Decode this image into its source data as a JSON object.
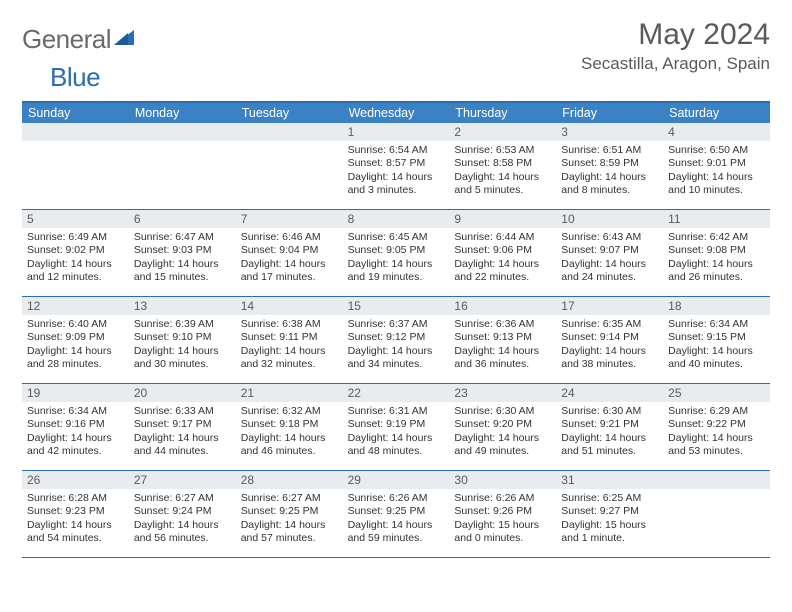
{
  "logo": {
    "gray": "General",
    "blue": "Blue"
  },
  "title": "May 2024",
  "location": "Secastilla, Aragon, Spain",
  "colors": {
    "header_bg": "#3b82c4",
    "border": "#2a6db0",
    "daynum_bg": "#e9ecef",
    "text": "#333333",
    "muted": "#5a5a5a"
  },
  "dayNames": [
    "Sunday",
    "Monday",
    "Tuesday",
    "Wednesday",
    "Thursday",
    "Friday",
    "Saturday"
  ],
  "weeks": [
    [
      {
        "empty": true
      },
      {
        "empty": true
      },
      {
        "empty": true
      },
      {
        "day": "1",
        "sunrise": "6:54 AM",
        "sunset": "8:57 PM",
        "daylight": "14 hours and 3 minutes."
      },
      {
        "day": "2",
        "sunrise": "6:53 AM",
        "sunset": "8:58 PM",
        "daylight": "14 hours and 5 minutes."
      },
      {
        "day": "3",
        "sunrise": "6:51 AM",
        "sunset": "8:59 PM",
        "daylight": "14 hours and 8 minutes."
      },
      {
        "day": "4",
        "sunrise": "6:50 AM",
        "sunset": "9:01 PM",
        "daylight": "14 hours and 10 minutes."
      }
    ],
    [
      {
        "day": "5",
        "sunrise": "6:49 AM",
        "sunset": "9:02 PM",
        "daylight": "14 hours and 12 minutes."
      },
      {
        "day": "6",
        "sunrise": "6:47 AM",
        "sunset": "9:03 PM",
        "daylight": "14 hours and 15 minutes."
      },
      {
        "day": "7",
        "sunrise": "6:46 AM",
        "sunset": "9:04 PM",
        "daylight": "14 hours and 17 minutes."
      },
      {
        "day": "8",
        "sunrise": "6:45 AM",
        "sunset": "9:05 PM",
        "daylight": "14 hours and 19 minutes."
      },
      {
        "day": "9",
        "sunrise": "6:44 AM",
        "sunset": "9:06 PM",
        "daylight": "14 hours and 22 minutes."
      },
      {
        "day": "10",
        "sunrise": "6:43 AM",
        "sunset": "9:07 PM",
        "daylight": "14 hours and 24 minutes."
      },
      {
        "day": "11",
        "sunrise": "6:42 AM",
        "sunset": "9:08 PM",
        "daylight": "14 hours and 26 minutes."
      }
    ],
    [
      {
        "day": "12",
        "sunrise": "6:40 AM",
        "sunset": "9:09 PM",
        "daylight": "14 hours and 28 minutes."
      },
      {
        "day": "13",
        "sunrise": "6:39 AM",
        "sunset": "9:10 PM",
        "daylight": "14 hours and 30 minutes."
      },
      {
        "day": "14",
        "sunrise": "6:38 AM",
        "sunset": "9:11 PM",
        "daylight": "14 hours and 32 minutes."
      },
      {
        "day": "15",
        "sunrise": "6:37 AM",
        "sunset": "9:12 PM",
        "daylight": "14 hours and 34 minutes."
      },
      {
        "day": "16",
        "sunrise": "6:36 AM",
        "sunset": "9:13 PM",
        "daylight": "14 hours and 36 minutes."
      },
      {
        "day": "17",
        "sunrise": "6:35 AM",
        "sunset": "9:14 PM",
        "daylight": "14 hours and 38 minutes."
      },
      {
        "day": "18",
        "sunrise": "6:34 AM",
        "sunset": "9:15 PM",
        "daylight": "14 hours and 40 minutes."
      }
    ],
    [
      {
        "day": "19",
        "sunrise": "6:34 AM",
        "sunset": "9:16 PM",
        "daylight": "14 hours and 42 minutes."
      },
      {
        "day": "20",
        "sunrise": "6:33 AM",
        "sunset": "9:17 PM",
        "daylight": "14 hours and 44 minutes."
      },
      {
        "day": "21",
        "sunrise": "6:32 AM",
        "sunset": "9:18 PM",
        "daylight": "14 hours and 46 minutes."
      },
      {
        "day": "22",
        "sunrise": "6:31 AM",
        "sunset": "9:19 PM",
        "daylight": "14 hours and 48 minutes."
      },
      {
        "day": "23",
        "sunrise": "6:30 AM",
        "sunset": "9:20 PM",
        "daylight": "14 hours and 49 minutes."
      },
      {
        "day": "24",
        "sunrise": "6:30 AM",
        "sunset": "9:21 PM",
        "daylight": "14 hours and 51 minutes."
      },
      {
        "day": "25",
        "sunrise": "6:29 AM",
        "sunset": "9:22 PM",
        "daylight": "14 hours and 53 minutes."
      }
    ],
    [
      {
        "day": "26",
        "sunrise": "6:28 AM",
        "sunset": "9:23 PM",
        "daylight": "14 hours and 54 minutes."
      },
      {
        "day": "27",
        "sunrise": "6:27 AM",
        "sunset": "9:24 PM",
        "daylight": "14 hours and 56 minutes."
      },
      {
        "day": "28",
        "sunrise": "6:27 AM",
        "sunset": "9:25 PM",
        "daylight": "14 hours and 57 minutes."
      },
      {
        "day": "29",
        "sunrise": "6:26 AM",
        "sunset": "9:25 PM",
        "daylight": "14 hours and 59 minutes."
      },
      {
        "day": "30",
        "sunrise": "6:26 AM",
        "sunset": "9:26 PM",
        "daylight": "15 hours and 0 minutes."
      },
      {
        "day": "31",
        "sunrise": "6:25 AM",
        "sunset": "9:27 PM",
        "daylight": "15 hours and 1 minute."
      },
      {
        "empty": true
      }
    ]
  ],
  "labels": {
    "sunrise": "Sunrise:",
    "sunset": "Sunset:",
    "daylight": "Daylight:"
  }
}
